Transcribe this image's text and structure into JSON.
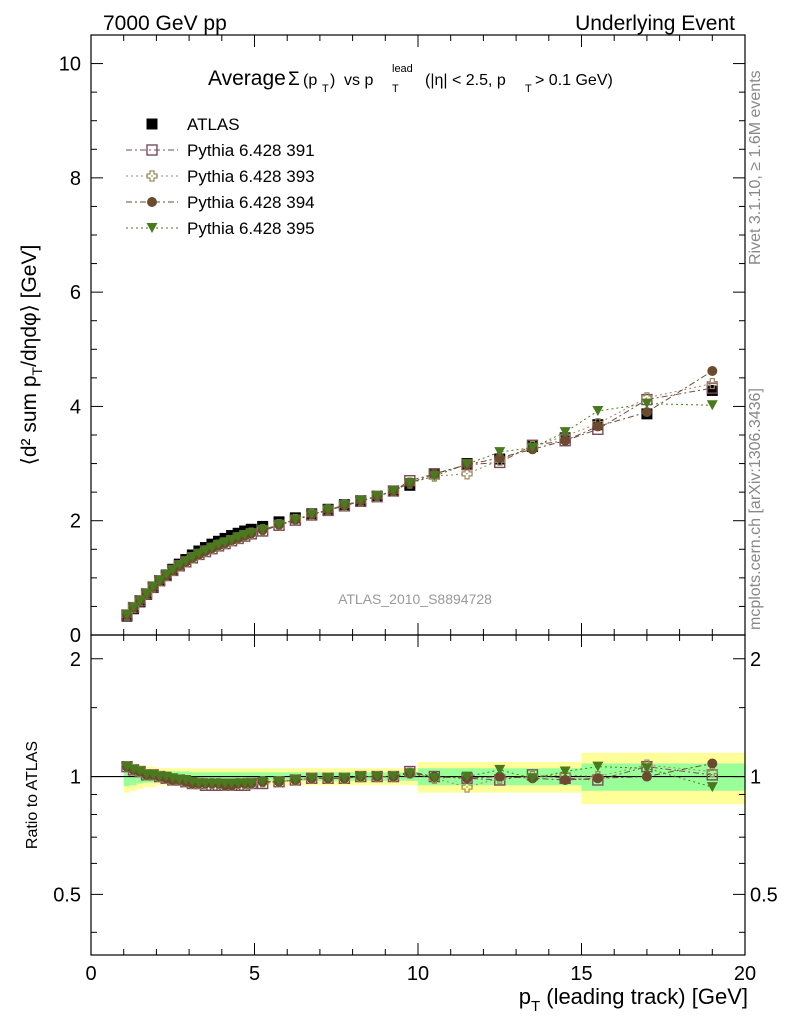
{
  "header": {
    "left": "7000 GeV pp",
    "right": "Underlying Event"
  },
  "side_labels": {
    "rivet": "Rivet 3.1.10, ≥ 1.6M events",
    "mcplots": "mcplots.cern.ch [arXiv:1306.3436]"
  },
  "title": {
    "main": "Average",
    "sigma": "Σ",
    "sigma_arg": "(p",
    "sigma_sub": "T",
    "sigma_close": ")",
    "vs": "vs p",
    "vs_sup": "lead",
    "vs_sub": "T",
    "cuts": "(|η| < 2.5, p",
    "cuts_sub": "T",
    "cuts_end": "> 0.1 GeV)"
  },
  "watermark": "ATLAS_2010_S8894728",
  "axes": {
    "main_ylabel": "⟨d² sum p_T/dηdφ⟩ [GeV]",
    "ratio_ylabel": "Ratio to ATLAS",
    "xlabel": "p_T (leading track) [GeV]"
  },
  "colors": {
    "atlas": "#000000",
    "p391": "#7a4a5c",
    "p393": "#9c8a5e",
    "p394": "#6b4a2e",
    "p395": "#4a7a1e",
    "band_inner": "#99ff99",
    "band_outer": "#ffff99"
  },
  "chart_data": [
    {
      "type": "scatter",
      "panel": "main",
      "xlim": [
        0,
        20
      ],
      "ylim": [
        0,
        10.5
      ],
      "x_ticks": [
        0,
        5,
        10,
        15,
        20
      ],
      "y_ticks": [
        0,
        2,
        4,
        6,
        8,
        10
      ],
      "legend_position": "top-left",
      "series": [
        {
          "name": "ATLAS",
          "marker": "square-filled",
          "x": [
            1.1,
            1.3,
            1.5,
            1.7,
            1.9,
            2.1,
            2.3,
            2.5,
            2.7,
            2.9,
            3.1,
            3.3,
            3.5,
            3.7,
            3.9,
            4.1,
            4.3,
            4.5,
            4.7,
            4.9,
            5.25,
            5.75,
            6.25,
            6.75,
            7.25,
            7.75,
            8.25,
            8.75,
            9.25,
            9.75,
            10.5,
            11.5,
            12.5,
            13.5,
            14.5,
            15.5,
            17.0,
            19.0
          ],
          "y": [
            0.33,
            0.46,
            0.58,
            0.71,
            0.83,
            0.95,
            1.05,
            1.15,
            1.24,
            1.32,
            1.4,
            1.47,
            1.53,
            1.59,
            1.64,
            1.69,
            1.74,
            1.78,
            1.82,
            1.85,
            1.9,
            1.98,
            2.05,
            2.12,
            2.2,
            2.28,
            2.35,
            2.43,
            2.52,
            2.62,
            2.82,
            3.0,
            3.08,
            3.3,
            3.45,
            3.68,
            3.87,
            4.28
          ]
        },
        {
          "name": "Pythia 6.428 391",
          "marker": "square-open",
          "x": [
            1.1,
            1.3,
            1.5,
            1.7,
            1.9,
            2.1,
            2.3,
            2.5,
            2.7,
            2.9,
            3.1,
            3.3,
            3.5,
            3.7,
            3.9,
            4.1,
            4.3,
            4.5,
            4.7,
            4.9,
            5.25,
            5.75,
            6.25,
            6.75,
            7.25,
            7.75,
            8.25,
            8.75,
            9.25,
            9.75,
            10.5,
            11.5,
            12.5,
            13.5,
            14.5,
            15.5,
            17.0,
            19.0
          ],
          "y": [
            0.35,
            0.48,
            0.6,
            0.72,
            0.84,
            0.95,
            1.04,
            1.13,
            1.21,
            1.28,
            1.35,
            1.41,
            1.46,
            1.51,
            1.56,
            1.6,
            1.65,
            1.69,
            1.73,
            1.77,
            1.82,
            1.92,
            2.01,
            2.1,
            2.18,
            2.26,
            2.34,
            2.42,
            2.52,
            2.7,
            2.82,
            2.98,
            3.02,
            3.32,
            3.4,
            3.6,
            4.12,
            4.32
          ]
        },
        {
          "name": "Pythia 6.428 393",
          "marker": "cross-open",
          "x": [
            1.1,
            1.3,
            1.5,
            1.7,
            1.9,
            2.1,
            2.3,
            2.5,
            2.7,
            2.9,
            3.1,
            3.3,
            3.5,
            3.7,
            3.9,
            4.1,
            4.3,
            4.5,
            4.7,
            4.9,
            5.25,
            5.75,
            6.25,
            6.75,
            7.25,
            7.75,
            8.25,
            8.75,
            9.25,
            9.75,
            10.5,
            11.5,
            12.5,
            13.5,
            14.5,
            15.5,
            17.0,
            19.0
          ],
          "y": [
            0.35,
            0.48,
            0.6,
            0.72,
            0.84,
            0.95,
            1.04,
            1.13,
            1.21,
            1.28,
            1.35,
            1.41,
            1.47,
            1.52,
            1.57,
            1.61,
            1.65,
            1.7,
            1.74,
            1.78,
            1.84,
            1.93,
            2.02,
            2.11,
            2.19,
            2.27,
            2.35,
            2.43,
            2.52,
            2.66,
            2.78,
            2.82,
            3.06,
            3.3,
            3.48,
            3.7,
            4.15,
            4.4
          ]
        },
        {
          "name": "Pythia 6.428 394",
          "marker": "circle-filled",
          "x": [
            1.1,
            1.3,
            1.5,
            1.7,
            1.9,
            2.1,
            2.3,
            2.5,
            2.7,
            2.9,
            3.1,
            3.3,
            3.5,
            3.7,
            3.9,
            4.1,
            4.3,
            4.5,
            4.7,
            4.9,
            5.25,
            5.75,
            6.25,
            6.75,
            7.25,
            7.75,
            8.25,
            8.75,
            9.25,
            9.75,
            10.5,
            11.5,
            12.5,
            13.5,
            14.5,
            15.5,
            17.0,
            19.0
          ],
          "y": [
            0.35,
            0.48,
            0.6,
            0.72,
            0.84,
            0.95,
            1.04,
            1.13,
            1.21,
            1.28,
            1.35,
            1.41,
            1.47,
            1.52,
            1.57,
            1.61,
            1.66,
            1.7,
            1.74,
            1.78,
            1.84,
            1.93,
            2.02,
            2.11,
            2.19,
            2.27,
            2.35,
            2.43,
            2.52,
            2.66,
            2.82,
            2.98,
            3.1,
            3.25,
            3.4,
            3.65,
            3.9,
            4.62
          ]
        },
        {
          "name": "Pythia 6.428 395",
          "marker": "triangle-down-filled",
          "x": [
            1.1,
            1.3,
            1.5,
            1.7,
            1.9,
            2.1,
            2.3,
            2.5,
            2.7,
            2.9,
            3.1,
            3.3,
            3.5,
            3.7,
            3.9,
            4.1,
            4.3,
            4.5,
            4.7,
            4.9,
            5.25,
            5.75,
            6.25,
            6.75,
            7.25,
            7.75,
            8.25,
            8.75,
            9.25,
            9.75,
            10.5,
            11.5,
            12.5,
            13.5,
            14.5,
            15.5,
            17.0,
            19.0
          ],
          "y": [
            0.35,
            0.48,
            0.6,
            0.72,
            0.84,
            0.95,
            1.05,
            1.14,
            1.22,
            1.29,
            1.36,
            1.42,
            1.48,
            1.53,
            1.58,
            1.62,
            1.66,
            1.71,
            1.75,
            1.78,
            1.84,
            1.93,
            2.02,
            2.11,
            2.19,
            2.27,
            2.35,
            2.43,
            2.52,
            2.66,
            2.78,
            2.99,
            3.2,
            3.28,
            3.55,
            3.92,
            4.05,
            4.02
          ]
        }
      ]
    },
    {
      "type": "scatter",
      "panel": "ratio",
      "ylabel": "Ratio to ATLAS",
      "xlim": [
        0,
        20
      ],
      "ylim": [
        0.35,
        2.3
      ],
      "x_ticks": [
        0,
        5,
        10,
        15,
        20
      ],
      "y_ticks": [
        0.5,
        1,
        2
      ],
      "bands": [
        {
          "x": [
            1.0,
            1.2,
            1.4,
            1.6,
            2.0,
            3.0,
            5.0,
            10.0,
            15.0,
            20.0
          ],
          "inner": [
            0.055,
            0.05,
            0.04,
            0.035,
            0.03,
            0.025,
            0.025,
            0.05,
            0.08,
            0.09
          ],
          "outer": [
            0.09,
            0.08,
            0.07,
            0.06,
            0.05,
            0.05,
            0.05,
            0.09,
            0.15,
            0.17
          ]
        }
      ],
      "series": [
        {
          "name": "Pythia 6.428 391",
          "x": [
            1.1,
            1.3,
            1.5,
            1.7,
            1.9,
            2.1,
            2.3,
            2.5,
            2.7,
            2.9,
            3.1,
            3.3,
            3.5,
            3.7,
            3.9,
            4.1,
            4.3,
            4.5,
            4.7,
            4.9,
            5.25,
            5.75,
            6.25,
            6.75,
            7.25,
            7.75,
            8.25,
            8.75,
            9.25,
            9.75,
            10.5,
            11.5,
            12.5,
            13.5,
            14.5,
            15.5,
            17.0,
            19.0
          ],
          "y": [
            1.06,
            1.04,
            1.03,
            1.01,
            1.01,
            1.0,
            0.99,
            0.98,
            0.98,
            0.97,
            0.96,
            0.96,
            0.95,
            0.95,
            0.95,
            0.95,
            0.95,
            0.95,
            0.95,
            0.96,
            0.96,
            0.97,
            0.98,
            0.99,
            0.99,
            0.99,
            1.0,
            1.0,
            1.0,
            1.03,
            1.0,
            0.99,
            0.98,
            1.01,
            0.99,
            0.98,
            1.06,
            1.01
          ]
        },
        {
          "name": "Pythia 6.428 393",
          "x": [
            1.1,
            1.3,
            1.5,
            1.7,
            1.9,
            2.1,
            2.3,
            2.5,
            2.7,
            2.9,
            3.1,
            3.3,
            3.5,
            3.7,
            3.9,
            4.1,
            4.3,
            4.5,
            4.7,
            4.9,
            5.25,
            5.75,
            6.25,
            6.75,
            7.25,
            7.75,
            8.25,
            8.75,
            9.25,
            9.75,
            10.5,
            11.5,
            12.5,
            13.5,
            14.5,
            15.5,
            17.0,
            19.0
          ],
          "y": [
            1.06,
            1.04,
            1.03,
            1.01,
            1.01,
            1.0,
            0.99,
            0.98,
            0.98,
            0.97,
            0.96,
            0.96,
            0.96,
            0.96,
            0.96,
            0.95,
            0.95,
            0.96,
            0.96,
            0.96,
            0.97,
            0.97,
            0.98,
            0.99,
            0.99,
            0.99,
            1.0,
            1.0,
            1.0,
            1.02,
            0.99,
            0.94,
            0.99,
            1.0,
            1.01,
            1.0,
            1.07,
            1.03
          ]
        },
        {
          "name": "Pythia 6.428 394",
          "x": [
            1.1,
            1.3,
            1.5,
            1.7,
            1.9,
            2.1,
            2.3,
            2.5,
            2.7,
            2.9,
            3.1,
            3.3,
            3.5,
            3.7,
            3.9,
            4.1,
            4.3,
            4.5,
            4.7,
            4.9,
            5.25,
            5.75,
            6.25,
            6.75,
            7.25,
            7.75,
            8.25,
            8.75,
            9.25,
            9.75,
            10.5,
            11.5,
            12.5,
            13.5,
            14.5,
            15.5,
            17.0,
            19.0
          ],
          "y": [
            1.06,
            1.04,
            1.03,
            1.01,
            1.01,
            1.0,
            0.99,
            0.98,
            0.98,
            0.97,
            0.96,
            0.96,
            0.96,
            0.96,
            0.96,
            0.95,
            0.95,
            0.96,
            0.96,
            0.96,
            0.97,
            0.97,
            0.98,
            0.99,
            0.99,
            0.99,
            1.0,
            1.0,
            1.0,
            1.02,
            1.0,
            0.99,
            1.0,
            0.99,
            0.98,
            0.99,
            1.0,
            1.08
          ]
        },
        {
          "name": "Pythia 6.428 395",
          "x": [
            1.1,
            1.3,
            1.5,
            1.7,
            1.9,
            2.1,
            2.3,
            2.5,
            2.7,
            2.9,
            3.1,
            3.3,
            3.5,
            3.7,
            3.9,
            4.1,
            4.3,
            4.5,
            4.7,
            4.9,
            5.25,
            5.75,
            6.25,
            6.75,
            7.25,
            7.75,
            8.25,
            8.75,
            9.25,
            9.75,
            10.5,
            11.5,
            12.5,
            13.5,
            14.5,
            15.5,
            17.0,
            19.0
          ],
          "y": [
            1.06,
            1.04,
            1.03,
            1.01,
            1.01,
            1.0,
            1.0,
            0.99,
            0.98,
            0.98,
            0.97,
            0.96,
            0.96,
            0.96,
            0.96,
            0.96,
            0.96,
            0.96,
            0.96,
            0.96,
            0.97,
            0.97,
            0.98,
            0.99,
            0.99,
            0.99,
            1.0,
            1.0,
            1.0,
            1.02,
            0.99,
            1.0,
            1.04,
            0.99,
            1.03,
            1.06,
            1.05,
            0.94
          ]
        }
      ]
    }
  ]
}
